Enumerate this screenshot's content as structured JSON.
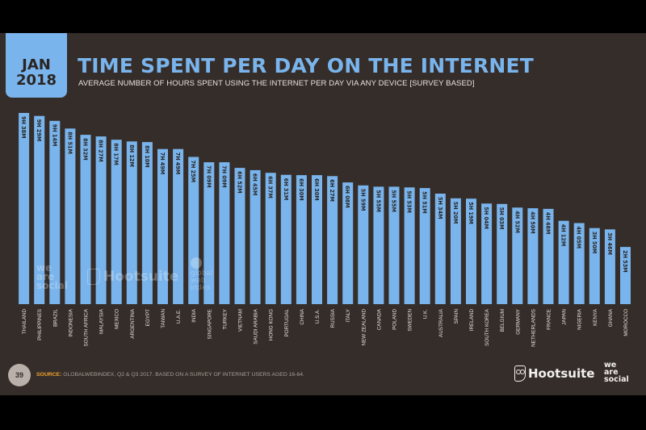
{
  "slide": {
    "date_month": "JAN",
    "date_year": "2018",
    "page_number": "39",
    "source_label": "SOURCE:",
    "source_text": "GLOBALWEBINDEX, Q2 & Q3 2017. BASED ON A SURVEY OF INTERNET USERS AGED 16-64.",
    "brand_hootsuite": "Hootsuite",
    "brand_wearesocial": [
      "we",
      "are",
      "social"
    ],
    "watermark_gwi": [
      "global",
      "web",
      "index"
    ]
  },
  "colors": {
    "background": "#352d29",
    "bar": "#79b4ec",
    "title": "#79b4ec",
    "source_label": "#f0a22e"
  },
  "chart_data": {
    "type": "bar",
    "title": "TIME SPENT PER DAY ON THE INTERNET",
    "subtitle": "AVERAGE NUMBER OF HOURS SPENT USING THE INTERNET PER DAY VIA ANY DEVICE [SURVEY BASED]",
    "xlabel": "",
    "ylabel": "Minutes per day",
    "ylim": [
      0,
      600
    ],
    "grid": false,
    "categories": [
      "THAILAND",
      "PHILIPPINES",
      "BRAZIL",
      "INDONESIA",
      "SOUTH AFRICA",
      "MALAYSIA",
      "MEXICO",
      "ARGENTINA",
      "EGYPT",
      "TAIWAN",
      "U.A.E.",
      "INDIA",
      "SINGAPORE",
      "TURKEY",
      "VIETNAM",
      "SAUDI ARABIA",
      "HONG KONG",
      "PORTUGAL",
      "CHINA",
      "U.S.A.",
      "RUSSIA",
      "ITALY",
      "NEW ZEALAND",
      "CANADA",
      "POLAND",
      "SWEDEN",
      "U.K.",
      "AUSTRALIA",
      "SPAIN",
      "IRELAND",
      "SOUTH KOREA",
      "BELGIUM",
      "GERMANY",
      "NETHERLANDS",
      "FRANCE",
      "JAPAN",
      "NIGERIA",
      "KENYA",
      "GHANA",
      "MOROCCO"
    ],
    "values": [
      578,
      569,
      554,
      531,
      512,
      507,
      497,
      492,
      490,
      469,
      469,
      445,
      429,
      429,
      412,
      405,
      397,
      391,
      390,
      390,
      387,
      368,
      359,
      355,
      355,
      353,
      351,
      334,
      320,
      319,
      304,
      303,
      292,
      290,
      288,
      252,
      245,
      230,
      226,
      173
    ],
    "value_labels": [
      "9H 38M",
      "9H 29M",
      "9H 14M",
      "8H 51M",
      "8H 32M",
      "8H 27M",
      "8H 17M",
      "8H 12M",
      "8H 10M",
      "7H 49M",
      "7H 49M",
      "7H 25M",
      "7H 09M",
      "7H 09M",
      "6H 52M",
      "6H 45M",
      "6H 37M",
      "6H 31M",
      "6H 30M",
      "6H 30M",
      "6H 27M",
      "6H 08M",
      "5H 59M",
      "5H 55M",
      "5H 55M",
      "5H 53M",
      "5H 51M",
      "5H 34M",
      "5H 20M",
      "5H 19M",
      "5H 04M",
      "5H 03M",
      "4H 52M",
      "4H 50M",
      "4H 48M",
      "4H 12M",
      "4H 05M",
      "3H 50M",
      "3H 46M",
      "2H 53M"
    ]
  }
}
